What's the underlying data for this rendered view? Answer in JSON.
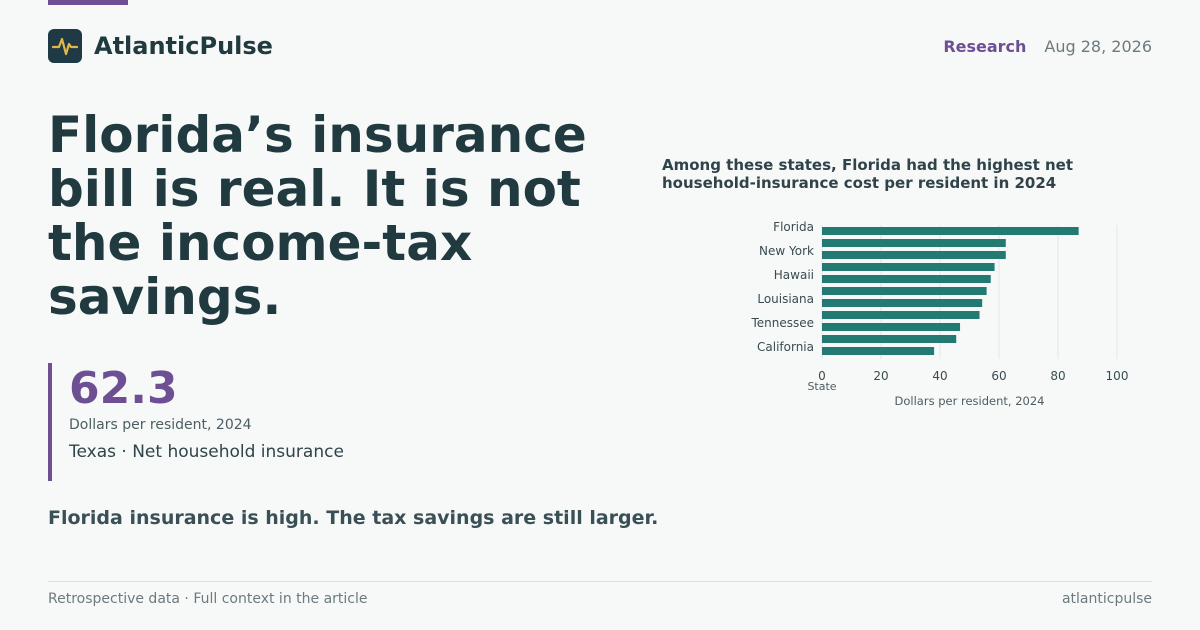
{
  "brand": {
    "name": "AtlanticPulse",
    "logo_icon": "pulse-icon"
  },
  "meta": {
    "section": "Research",
    "date": "Aug 28, 2026"
  },
  "headline": "Florida’s insurance bill is real. It is not the income-tax savings.",
  "stat": {
    "value": "62.3",
    "unit": "Dollars per resident, 2024",
    "label": "Texas · Net household insurance"
  },
  "subhead": "Florida insurance is high. The tax savings are still larger.",
  "footer": {
    "left": "Retrospective data · Full context in the article",
    "right": "atlanticpulse"
  },
  "colors": {
    "accent": "#6e4f94",
    "bar": "#237a72",
    "text": "#203a40"
  },
  "chart_data": {
    "type": "bar",
    "orientation": "horizontal",
    "title": "Among these states, Florida had the highest net household-insurance cost per resident in 2024",
    "ylabel": "State",
    "xlabel": "Dollars per resident, 2024",
    "categories": [
      "Florida",
      "",
      "New York",
      "",
      "Hawaii",
      "",
      "Louisiana",
      "",
      "Tennessee",
      "",
      "California"
    ],
    "values": [
      87,
      62.3,
      62.3,
      58.5,
      57.2,
      55.8,
      54.3,
      53.4,
      46.8,
      45.5,
      38
    ],
    "xlim": [
      0,
      100
    ],
    "xticks": [
      "0",
      "20",
      "40",
      "60",
      "80",
      "100"
    ],
    "grid": true
  }
}
